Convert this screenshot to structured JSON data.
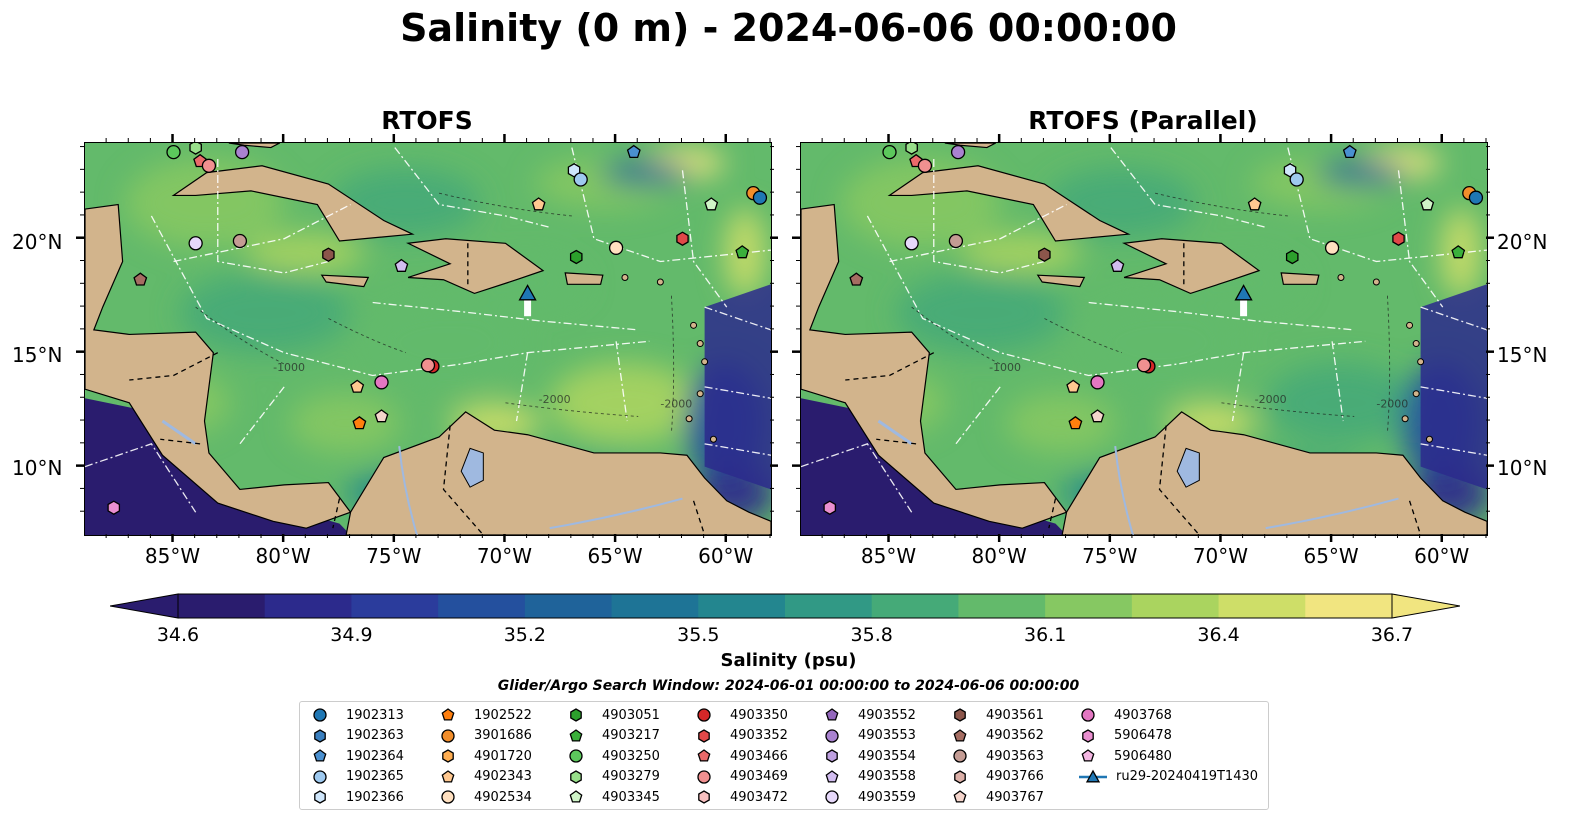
{
  "figure": {
    "suptitle": "Salinity (0 m) - 2024-06-06 00:00:00",
    "panels": [
      {
        "title": "RTOFS"
      },
      {
        "title": "RTOFS (Parallel)"
      }
    ],
    "lat_ticks": [
      "20°N",
      "15°N",
      "10°N"
    ],
    "lon_ticks": [
      "85°W",
      "80°W",
      "75°W",
      "70°W",
      "65°W",
      "60°W"
    ],
    "contour_labels": [
      "-1000",
      "-2000"
    ]
  },
  "colorbar": {
    "label": "Salinity (psu)",
    "ticks": [
      "34.6",
      "34.9",
      "35.2",
      "35.5",
      "35.8",
      "36.1",
      "36.4",
      "36.7"
    ],
    "colors": [
      "#2a1c6e",
      "#2c2a8c",
      "#2b3c9c",
      "#24509e",
      "#1f639a",
      "#1e7496",
      "#23868f",
      "#319985",
      "#45aa78",
      "#63ba6b",
      "#86c862",
      "#aad45f",
      "#cede68",
      "#f1e580"
    ],
    "land": "#d2b48c",
    "lake": "#9fb9e0"
  },
  "search_window": "Glider/Argo Search Window: 2024-06-01 00:00:00 to 2024-06-06 00:00:00",
  "legend": [
    {
      "id": "1902313",
      "marker": "circle",
      "color": "#1f77b4"
    },
    {
      "id": "1902363",
      "marker": "hexagon",
      "color": "#3a7fbf"
    },
    {
      "id": "1902364",
      "marker": "pentagon",
      "color": "#4a90d0"
    },
    {
      "id": "1902365",
      "marker": "circle",
      "color": "#9ec9ef"
    },
    {
      "id": "1902366",
      "marker": "hexagon",
      "color": "#cfe6fb"
    },
    {
      "id": "1902522",
      "marker": "pentagon",
      "color": "#ff7f0e"
    },
    {
      "id": "3901686",
      "marker": "circle",
      "color": "#f28e2b"
    },
    {
      "id": "4901720",
      "marker": "hexagon",
      "color": "#ffae52"
    },
    {
      "id": "4902343",
      "marker": "pentagon",
      "color": "#ffc890"
    },
    {
      "id": "4902534",
      "marker": "circle",
      "color": "#ffe0c0"
    },
    {
      "id": "4903051",
      "marker": "hexagon",
      "color": "#2ca02c"
    },
    {
      "id": "4903217",
      "marker": "pentagon",
      "color": "#3bb03b"
    },
    {
      "id": "4903250",
      "marker": "circle",
      "color": "#5cc85c"
    },
    {
      "id": "4903279",
      "marker": "hexagon",
      "color": "#98df8a"
    },
    {
      "id": "4903345",
      "marker": "pentagon",
      "color": "#d0f5c8"
    },
    {
      "id": "4903350",
      "marker": "circle",
      "color": "#d62728"
    },
    {
      "id": "4903352",
      "marker": "hexagon",
      "color": "#e04848"
    },
    {
      "id": "4903466",
      "marker": "pentagon",
      "color": "#ea6a6a"
    },
    {
      "id": "4903469",
      "marker": "circle",
      "color": "#f09090"
    },
    {
      "id": "4903472",
      "marker": "hexagon",
      "color": "#f8c0c0"
    },
    {
      "id": "4903552",
      "marker": "pentagon",
      "color": "#9467bd"
    },
    {
      "id": "4903553",
      "marker": "circle",
      "color": "#a982d0"
    },
    {
      "id": "4903554",
      "marker": "hexagon",
      "color": "#bea0e0"
    },
    {
      "id": "4903558",
      "marker": "pentagon",
      "color": "#d2bdf0"
    },
    {
      "id": "4903559",
      "marker": "circle",
      "color": "#e6d8fa"
    },
    {
      "id": "4903561",
      "marker": "hexagon",
      "color": "#8c564b"
    },
    {
      "id": "4903562",
      "marker": "pentagon",
      "color": "#a56d62"
    },
    {
      "id": "4903563",
      "marker": "circle",
      "color": "#c49c94"
    },
    {
      "id": "4903766",
      "marker": "hexagon",
      "color": "#dcb0a8"
    },
    {
      "id": "4903767",
      "marker": "pentagon",
      "color": "#f5d5cc"
    },
    {
      "id": "4903768",
      "marker": "circle",
      "color": "#e377c2"
    },
    {
      "id": "5906478",
      "marker": "hexagon",
      "color": "#ea8fd0"
    },
    {
      "id": "5906480",
      "marker": "pentagon",
      "color": "#f4b6e2"
    },
    {
      "id": "ru29-20240419T1430",
      "marker": "triangle-line",
      "color": "#1f77b4"
    }
  ]
}
